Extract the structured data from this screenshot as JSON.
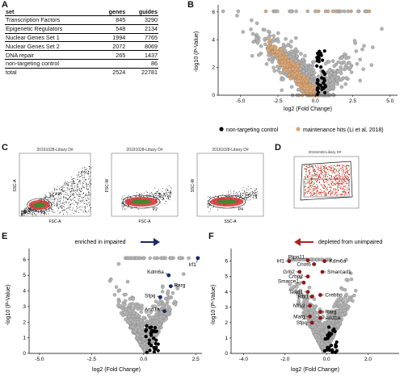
{
  "panels": {
    "a": "A",
    "b": "B",
    "c": "C",
    "d": "D",
    "e": "E",
    "f": "F"
  },
  "table": {
    "headers": [
      "set",
      "genes",
      "guides"
    ],
    "rows": [
      [
        "Transcription Factors",
        "845",
        "3290"
      ],
      [
        "Epigenetic Regulators",
        "548",
        "2134"
      ],
      [
        "Nuclear Genes Set 1",
        "1994",
        "7765"
      ],
      [
        "Nuclear Genes Set 2",
        "2072",
        "8069"
      ],
      [
        "DNA repair",
        "265",
        "1437"
      ],
      [
        "non-targeting control",
        "",
        "86"
      ]
    ],
    "total": [
      "total",
      "2524",
      "22781"
    ]
  },
  "volcano_b": {
    "xlabel": "log2 (Fold Change)",
    "ylabel": "-log10 (P-Value)",
    "xticks": [
      "-5.0",
      "-2.5",
      "0.0",
      "2.5",
      "5.0"
    ],
    "yticks": [
      "0",
      "2",
      "4",
      "6"
    ],
    "legend": [
      "non-targeting control",
      "maintenance hits (Li et al, 2018)"
    ],
    "colors": {
      "bg": "#b3b3b3",
      "hit": "#d9a77a",
      "ctrl": "#000000"
    }
  },
  "facs": {
    "titles": [
      "20191028-Libary D#",
      "20191028-Libary D#",
      "20191028-Libary D#",
      "20191028-Libary D#"
    ],
    "gates": [
      "P1",
      "P2",
      "P4"
    ],
    "x_labels": [
      "FSC-A",
      "FSC-A",
      "SSC-A",
      ""
    ],
    "y_labels": [
      "SSC-A",
      "FSC-W",
      "SSC-W",
      ""
    ]
  },
  "volcano_e": {
    "title": "enriched in impaired",
    "xlabel": "log2 (Fold Change)",
    "ylabel": "-log10 (P-Value)",
    "xticks": [
      "-5.0",
      "-2.5",
      "0.0",
      "2.5"
    ],
    "yticks": [
      "0",
      "1",
      "2",
      "3",
      "4",
      "5",
      "6"
    ],
    "labels": [
      "Kdm6a",
      "Rarg",
      "Sfpq",
      "Arid1a",
      "Irf1"
    ]
  },
  "volcano_f": {
    "title": "depleted from unimpaired",
    "xlabel": "log2 (Fold Change)",
    "ylabel": "-log10 (P-Value)",
    "xticks": [
      "-4.0",
      "-2.0",
      "0.0",
      "2.0"
    ],
    "yticks": [
      "0",
      "1",
      "2",
      "3",
      "4",
      "5",
      "6"
    ],
    "labels": [
      "Irf1",
      "Ptpn11",
      "Kdm6a",
      "Cnot6",
      "Grb2",
      "Crbp2",
      "Smarcad1",
      "Smarce1",
      "Tead1",
      "Rbl1",
      "Crebbp",
      "Nfix2",
      "Rarg",
      "Mafg",
      "Sfpq",
      "Arid1a"
    ]
  }
}
